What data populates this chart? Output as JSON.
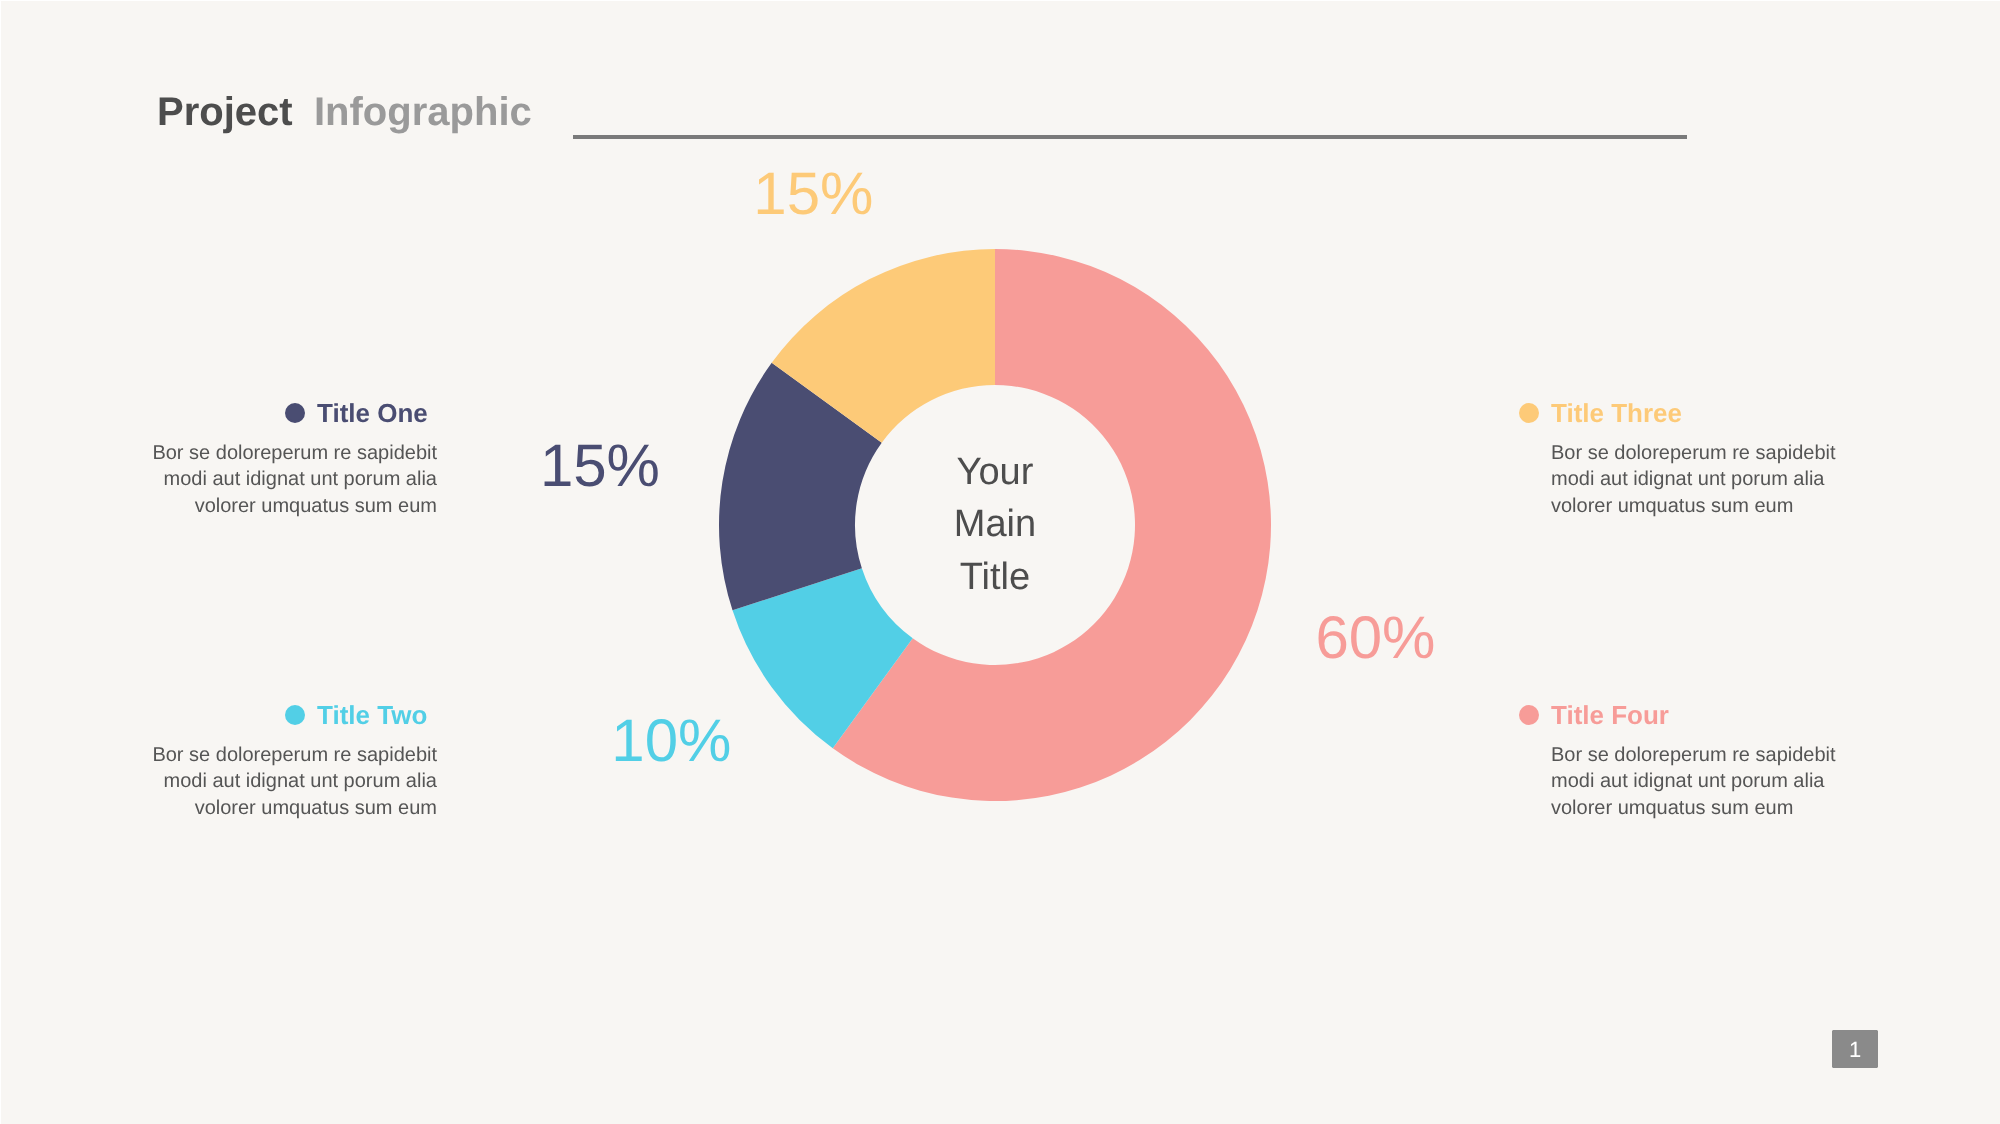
{
  "chart_data": {
    "type": "donut",
    "title": "Project Infographic",
    "categories": [
      "Title Four",
      "Title Two",
      "Title One",
      "Title Three"
    ],
    "values": [
      60,
      10,
      15,
      15
    ],
    "colors": [
      "#f79c98",
      "#52cfe6",
      "#4a4d72",
      "#fdca78"
    ],
    "value_labels": [
      "60%",
      "10%",
      "15%",
      "15%"
    ],
    "legend": "right",
    "annotations": [
      "Bor se doloreperum re sapidebit modi aut idignat unt porum alia volorer umquatus sum eum",
      "Bor se doloreperum re sapidebit modi aut idignat unt porum alia volorer umquatus sum eum",
      "Bor se doloreperum re sapidebit modi aut idignat unt porum alia volorer umquatus sum eum",
      "Bor se doloreperum re sapidebit modi aut idignat unt porum alia volorer umquatus sum eum",
      "Your Main Title",
      "1"
    ]
  }
}
